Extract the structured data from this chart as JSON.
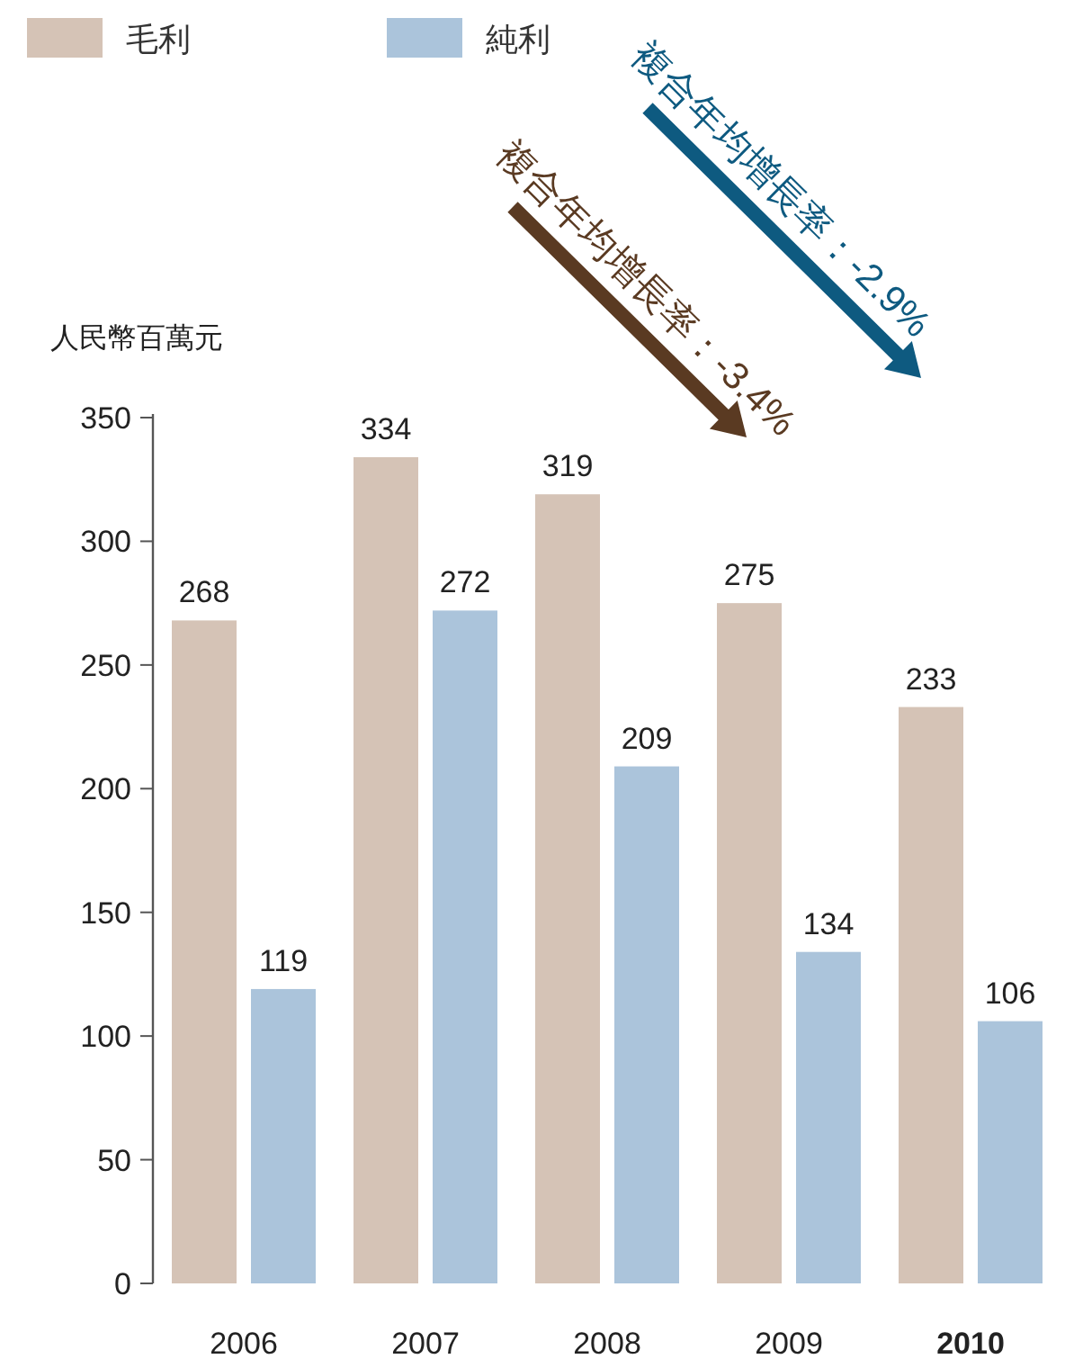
{
  "chart_data": {
    "type": "bar",
    "ylabel": "人民幣百萬元",
    "categories": [
      "2006",
      "2007",
      "2008",
      "2009",
      "2010"
    ],
    "series": [
      {
        "name": "毛利",
        "color": "#d5c3b6",
        "values": [
          268,
          334,
          319,
          275,
          233
        ]
      },
      {
        "name": "純利",
        "color": "#abc4db",
        "values": [
          119,
          272,
          209,
          134,
          106
        ]
      }
    ],
    "ylim": [
      0,
      350
    ],
    "yticks": [
      0,
      50,
      100,
      150,
      200,
      250,
      300,
      350
    ],
    "data_labels": true,
    "legend": "top left",
    "annotations": [
      "複合年均增長率：-3.4%",
      "複合年均增長率：-2.9%"
    ]
  }
}
